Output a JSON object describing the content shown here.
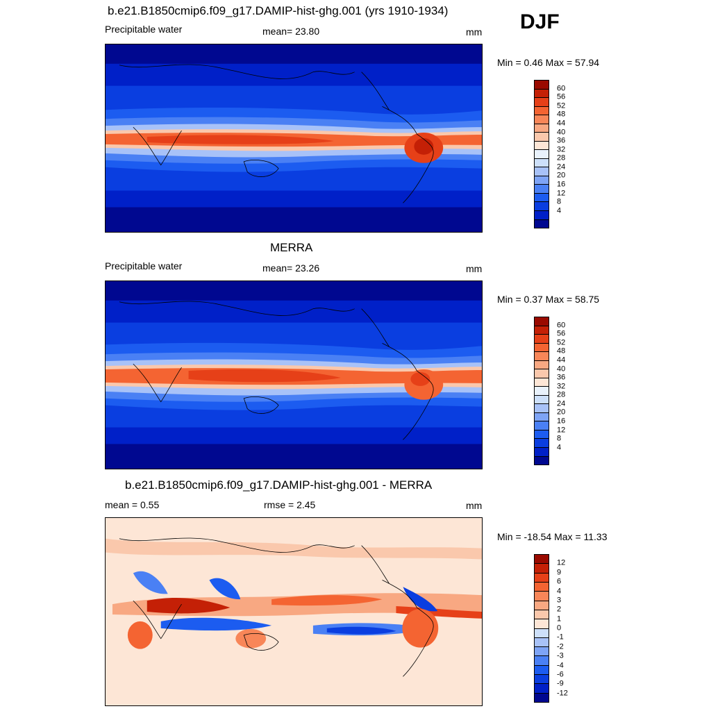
{
  "season": "DJF",
  "units": "mm",
  "palette_abs": [
    "#000890",
    "#0020c8",
    "#0a3ee0",
    "#1c5cf0",
    "#4a80f4",
    "#7ea4f6",
    "#a8c2f8",
    "#cde0fa",
    "#e9f2fc",
    "#fde6d6",
    "#fac8ac",
    "#f8a882",
    "#f88658",
    "#f46432",
    "#e64018",
    "#c42006",
    "#9a0a00"
  ],
  "palette_diff": [
    "#000890",
    "#0020c8",
    "#0a3ee0",
    "#1c5cf0",
    "#4a80f4",
    "#7ea4f6",
    "#a8c2f8",
    "#cde0fa",
    "#fde6d6",
    "#fac8ac",
    "#f8a882",
    "#f88658",
    "#f46432",
    "#e64018",
    "#c42006",
    "#9a0a00"
  ],
  "panel1": {
    "title": "b.e21.B1850cmip6.f09_g17.DAMIP-hist-ghg.001 (yrs 1910-1934)",
    "variable": "Precipitable water",
    "mean_text": "mean=  23.80",
    "units": "mm",
    "minmax": "Min =   0.46 Max =  57.94"
  },
  "panel2": {
    "title": "MERRA",
    "variable": "Precipitable water",
    "mean_text": "mean=  23.26",
    "units": "mm",
    "minmax": "Min =   0.37 Max =  58.75"
  },
  "panel3": {
    "title": "b.e21.B1850cmip6.f09_g17.DAMIP-hist-ghg.001 - MERRA",
    "mean_text": "mean =   0.55",
    "rmse_text": "rmse =   2.45",
    "units": "mm",
    "minmax": "Min = -18.54 Max =  11.33"
  },
  "colorbar_abs": {
    "labels": [
      "60",
      "56",
      "52",
      "48",
      "44",
      "40",
      "36",
      "32",
      "28",
      "24",
      "20",
      "16",
      "12",
      "8",
      "4"
    ]
  },
  "colorbar_diff": {
    "labels": [
      "12",
      "9",
      "6",
      "4",
      "3",
      "2",
      "1",
      "0",
      "-1",
      "-2",
      "-3",
      "-4",
      "-6",
      "-9",
      "-12"
    ]
  }
}
